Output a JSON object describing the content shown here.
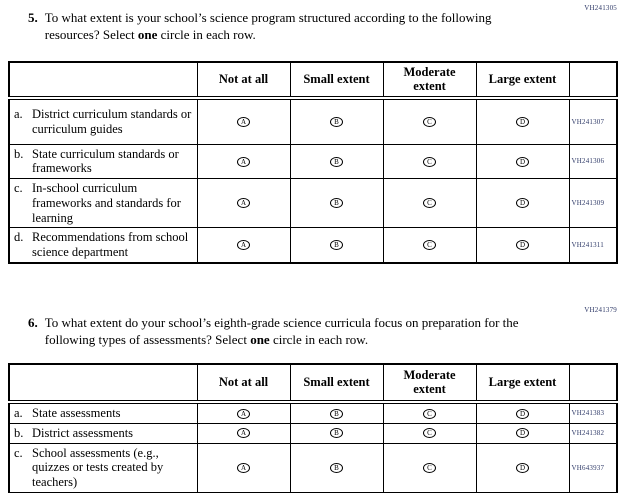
{
  "colors": {
    "page_background": "#ffffff",
    "text": "#000000",
    "border": "#000000",
    "admin_code": "#2f3a68"
  },
  "answer_letters": [
    "A",
    "B",
    "C",
    "D"
  ],
  "column_headers": [
    "Not at all",
    "Small extent",
    "Moderate extent",
    "Large extent"
  ],
  "q5": {
    "number": "5.",
    "code": "VH241305",
    "text_part1": "To what extent is your school’s science program structured according to the following resources? Select",
    "bold_word": "one",
    "text_part2": "circle in each row."
  },
  "q6": {
    "number": "6.",
    "code": "VH241379",
    "text_part1": "To what extent do your school’s eighth-grade science curricula focus on preparation for the following types of assessments? Select",
    "bold_word": "one",
    "text_part2": "circle in each row."
  },
  "table5": {
    "rows": [
      {
        "prefix": "a.",
        "label": "District curriculum standards or curriculum guides",
        "code": "VH241307"
      },
      {
        "prefix": "b.",
        "label": "State curriculum standards or frameworks",
        "code": "VH241306"
      },
      {
        "prefix": "c.",
        "label": "In-school curriculum frameworks and standards for learning",
        "code": "VH241309"
      },
      {
        "prefix": "d.",
        "label": "Recommendations from school science department",
        "code": "VH241311"
      }
    ]
  },
  "table6": {
    "rows": [
      {
        "prefix": "a.",
        "label": "State assessments",
        "code": "VH241383"
      },
      {
        "prefix": "b.",
        "label": "District assessments",
        "code": "VH241382"
      },
      {
        "prefix": "c.",
        "label": "School assessments (e.g., quizzes or tests created by teachers)",
        "code": "VH643937"
      }
    ]
  }
}
